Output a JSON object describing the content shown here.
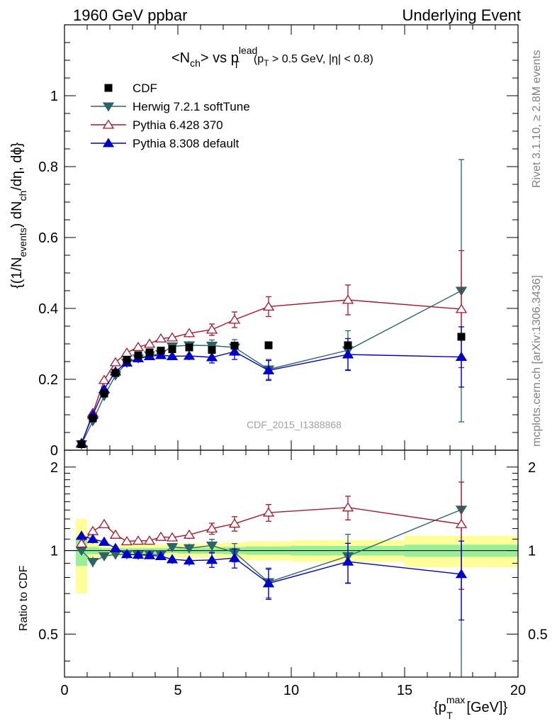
{
  "header": {
    "left": "1960 GeV ppbar",
    "right": "Underlying Event"
  },
  "side": {
    "rivet": "Rivet 3.1.10, ≥ 2.8M events",
    "mcplots": "mcplots.cern.ch [arXiv:1306.3436]"
  },
  "watermark": "CDF_2015_I1388868",
  "chart_data": {
    "type": "scatter",
    "title": {
      "prefix": "<N",
      "prefix_sub": "ch",
      "middle": "> vs p",
      "middle_sup": "lead",
      "middle_sub": "T",
      "cut_open": "(p",
      "cut_sub": "T",
      "cut_rest": " > 0.5 GeV, |η| < 0.8)"
    },
    "ylabel": {
      "p1": "{(1/N",
      "p1_sub": "events",
      "p2": ") dN",
      "p2_sub": "ch",
      "p3": "/dη, dϕ}"
    },
    "xlabel": {
      "p1": "{p",
      "p1_sup": "max",
      "p1_sub": "T",
      "p2": " [GeV]}"
    },
    "ratio_ylabel": "Ratio to CDF",
    "xlim": [
      0,
      20
    ],
    "ylim": [
      0,
      1.2
    ],
    "ratio_ylim": [
      0.35,
      2.3
    ],
    "x_ticks": [
      "0",
      "5",
      "10",
      "15",
      "20"
    ],
    "y_ticks": [
      "0",
      "0.2",
      "0.4",
      "0.6",
      "0.8",
      "1"
    ],
    "ratio_ticks": [
      "0.5",
      "1",
      "2"
    ],
    "legend_position": "top-left",
    "cdf": {
      "name": "CDF",
      "x": [
        0.75,
        1.25,
        1.75,
        2.25,
        2.75,
        3.25,
        3.75,
        4.25,
        4.75,
        5.5,
        6.5,
        7.5,
        9.0,
        12.5,
        17.5
      ],
      "y": [
        0.017,
        0.09,
        0.16,
        0.218,
        0.255,
        0.268,
        0.276,
        0.281,
        0.285,
        0.29,
        0.283,
        0.295,
        0.296,
        0.296,
        0.32
      ]
    },
    "bands": {
      "edges": [
        0.5,
        1.0,
        1.5,
        2.0,
        2.5,
        3.0,
        3.5,
        4.0,
        4.5,
        5.0,
        6.0,
        7.0,
        8.0,
        10.0,
        15.0,
        20.0
      ],
      "stat": [
        0.12,
        0.03,
        0.02,
        0.02,
        0.02,
        0.02,
        0.02,
        0.02,
        0.02,
        0.025,
        0.025,
        0.03,
        0.035,
        0.04,
        0.05
      ],
      "total": [
        0.3,
        0.07,
        0.05,
        0.05,
        0.05,
        0.05,
        0.05,
        0.05,
        0.05,
        0.06,
        0.06,
        0.07,
        0.08,
        0.09,
        0.13
      ]
    },
    "series": [
      {
        "name": "Herwig 7.2.1 softTune",
        "color": "#2c6467",
        "marker": "triangle-down-filled",
        "x": [
          0.75,
          1.25,
          1.75,
          2.25,
          2.75,
          3.25,
          3.75,
          4.25,
          4.75,
          5.5,
          6.5,
          7.5,
          9.0,
          12.5,
          17.5
        ],
        "y": [
          0.017,
          0.082,
          0.153,
          0.211,
          0.247,
          0.259,
          0.268,
          0.272,
          0.293,
          0.296,
          0.295,
          0.29,
          0.228,
          0.282,
          0.45
        ],
        "err": [
          0.002,
          0.004,
          0.005,
          0.006,
          0.006,
          0.007,
          0.008,
          0.009,
          0.01,
          0.012,
          0.016,
          0.022,
          0.028,
          0.055,
          0.37
        ],
        "ratio": [
          1.0,
          0.91,
          0.955,
          0.968,
          0.97,
          0.965,
          0.972,
          0.968,
          1.03,
          1.02,
          1.043,
          0.985,
          0.77,
          0.955,
          1.405
        ],
        "ratio_err": [
          0.01,
          0.04,
          0.03,
          0.03,
          0.025,
          0.025,
          0.03,
          0.03,
          0.035,
          0.04,
          0.055,
          0.075,
          0.095,
          0.19,
          1.16
        ]
      },
      {
        "name": "Pythia 6.428 370",
        "color": "#a5172b",
        "marker": "triangle-up-open",
        "x": [
          0.75,
          1.25,
          1.75,
          2.25,
          2.75,
          3.25,
          3.75,
          4.25,
          4.75,
          5.5,
          6.5,
          7.5,
          9.0,
          12.5,
          17.5
        ],
        "y": [
          0.018,
          0.105,
          0.198,
          0.248,
          0.275,
          0.291,
          0.3,
          0.315,
          0.318,
          0.33,
          0.34,
          0.368,
          0.405,
          0.424,
          0.398
        ],
        "err": [
          0.002,
          0.004,
          0.005,
          0.006,
          0.006,
          0.007,
          0.008,
          0.009,
          0.01,
          0.012,
          0.016,
          0.022,
          0.028,
          0.042,
          0.165
        ],
        "ratio": [
          1.06,
          1.175,
          1.245,
          1.14,
          1.08,
          1.085,
          1.085,
          1.12,
          1.115,
          1.14,
          1.2,
          1.25,
          1.37,
          1.43,
          1.245
        ],
        "ratio_err": [
          0.01,
          0.04,
          0.03,
          0.03,
          0.025,
          0.025,
          0.03,
          0.03,
          0.035,
          0.04,
          0.055,
          0.075,
          0.095,
          0.14,
          0.52
        ]
      },
      {
        "name": "Pythia 8.308 default",
        "color": "#0000c8",
        "marker": "triangle-up-filled",
        "x": [
          0.75,
          1.25,
          1.75,
          2.25,
          2.75,
          3.25,
          3.75,
          4.25,
          4.75,
          5.5,
          6.5,
          7.5,
          9.0,
          12.5,
          17.5
        ],
        "y": [
          0.02,
          0.1,
          0.172,
          0.222,
          0.247,
          0.259,
          0.265,
          0.268,
          0.265,
          0.266,
          0.262,
          0.278,
          0.225,
          0.27,
          0.263
        ],
        "err": [
          0.002,
          0.004,
          0.005,
          0.006,
          0.006,
          0.007,
          0.008,
          0.009,
          0.01,
          0.012,
          0.016,
          0.022,
          0.028,
          0.045,
          0.085
        ],
        "ratio": [
          1.13,
          1.1,
          1.075,
          1.02,
          0.97,
          0.965,
          0.962,
          0.955,
          0.93,
          0.92,
          0.925,
          0.94,
          0.762,
          0.912,
          0.822
        ],
        "ratio_err": [
          0.01,
          0.04,
          0.03,
          0.03,
          0.025,
          0.025,
          0.03,
          0.03,
          0.035,
          0.04,
          0.055,
          0.075,
          0.095,
          0.15,
          0.26
        ]
      }
    ]
  }
}
